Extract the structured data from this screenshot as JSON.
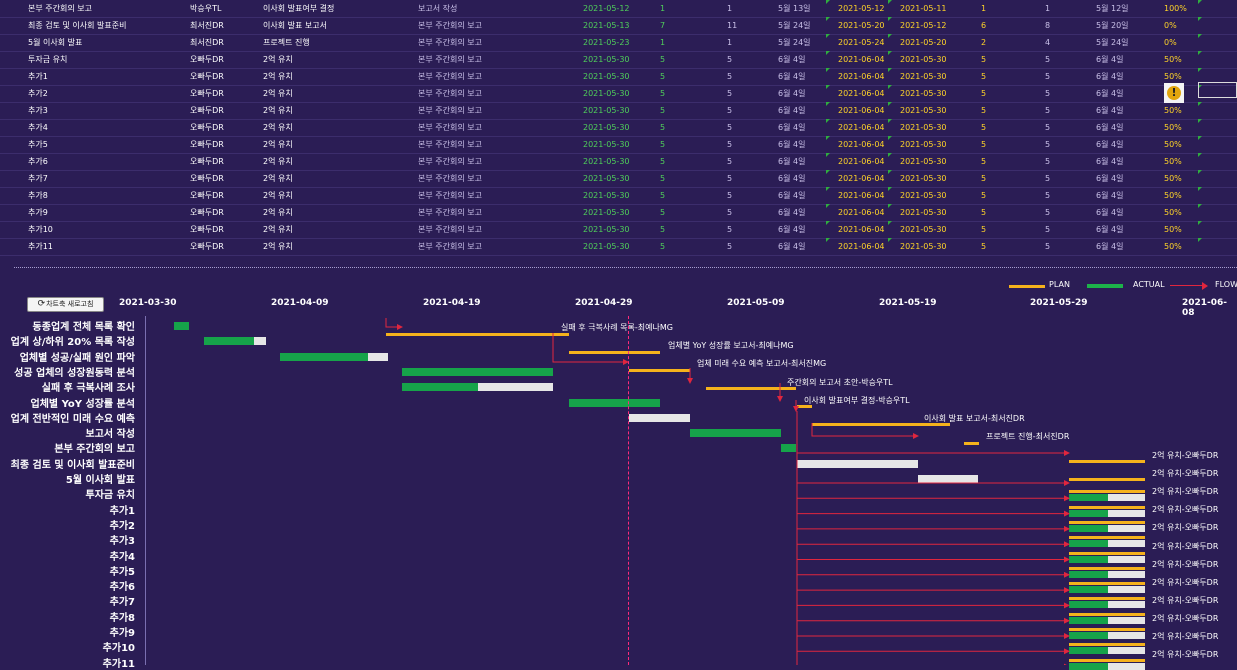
{
  "table": {
    "rows": [
      {
        "task": "본부 주간회의 보고",
        "owner": "박승우TL",
        "next": "이사회 발표여부 결정",
        "prev": "보고서 작성",
        "d1": "2021-05-12",
        "n1": "1",
        "n2": "1",
        "due": "5월 13일",
        "d2": "2021-05-12",
        "d3": "2021-05-11",
        "n3": "1",
        "n4": "1",
        "due2": "5월 12일",
        "pct": "100%"
      },
      {
        "task": "최종 검토 및 이사회 발표준비",
        "owner": "최서진DR",
        "next": "이사회 발표 보고서",
        "prev": "본부 주간회의 보고",
        "d1": "2021-05-13",
        "n1": "7",
        "n2": "11",
        "due": "5월 24일",
        "d2": "2021-05-20",
        "d3": "2021-05-12",
        "n3": "6",
        "n4": "8",
        "due2": "5월 20일",
        "pct": "0%"
      },
      {
        "task": "5월 이사회 발표",
        "owner": "최서진DR",
        "next": "프로젝트 진행",
        "prev": "본부 주간회의 보고",
        "d1": "2021-05-23",
        "n1": "1",
        "n2": "1",
        "due": "5월 24일",
        "d2": "2021-05-24",
        "d3": "2021-05-20",
        "n3": "2",
        "n4": "4",
        "due2": "5월 24일",
        "pct": "0%"
      },
      {
        "task": "투자금 유치",
        "owner": "오빠두DR",
        "next": "2억 유치",
        "prev": "본부 주간회의 보고",
        "d1": "2021-05-30",
        "n1": "5",
        "n2": "5",
        "due": "6월 4일",
        "d2": "2021-06-04",
        "d3": "2021-05-30",
        "n3": "5",
        "n4": "5",
        "due2": "6월 4일",
        "pct": "50%"
      },
      {
        "task": "추가1",
        "owner": "오빠두DR",
        "next": "2억 유치",
        "prev": "본부 주간회의 보고",
        "d1": "2021-05-30",
        "n1": "5",
        "n2": "5",
        "due": "6월 4일",
        "d2": "2021-06-04",
        "d3": "2021-05-30",
        "n3": "5",
        "n4": "5",
        "due2": "6월 4일",
        "pct": "50%"
      },
      {
        "task": "추가2",
        "owner": "오빠두DR",
        "next": "2억 유치",
        "prev": "본부 주간회의 보고",
        "d1": "2021-05-30",
        "n1": "5",
        "n2": "5",
        "due": "6월 4일",
        "d2": "2021-06-04",
        "d3": "2021-05-30",
        "n3": "5",
        "n4": "5",
        "due2": "6월 4일",
        "pct": ""
      },
      {
        "task": "추가3",
        "owner": "오빠두DR",
        "next": "2억 유치",
        "prev": "본부 주간회의 보고",
        "d1": "2021-05-30",
        "n1": "5",
        "n2": "5",
        "due": "6월 4일",
        "d2": "2021-06-04",
        "d3": "2021-05-30",
        "n3": "5",
        "n4": "5",
        "due2": "6월 4일",
        "pct": "50%"
      },
      {
        "task": "추가4",
        "owner": "오빠두DR",
        "next": "2억 유치",
        "prev": "본부 주간회의 보고",
        "d1": "2021-05-30",
        "n1": "5",
        "n2": "5",
        "due": "6월 4일",
        "d2": "2021-06-04",
        "d3": "2021-05-30",
        "n3": "5",
        "n4": "5",
        "due2": "6월 4일",
        "pct": "50%"
      },
      {
        "task": "추가5",
        "owner": "오빠두DR",
        "next": "2억 유치",
        "prev": "본부 주간회의 보고",
        "d1": "2021-05-30",
        "n1": "5",
        "n2": "5",
        "due": "6월 4일",
        "d2": "2021-06-04",
        "d3": "2021-05-30",
        "n3": "5",
        "n4": "5",
        "due2": "6월 4일",
        "pct": "50%"
      },
      {
        "task": "추가6",
        "owner": "오빠두DR",
        "next": "2억 유치",
        "prev": "본부 주간회의 보고",
        "d1": "2021-05-30",
        "n1": "5",
        "n2": "5",
        "due": "6월 4일",
        "d2": "2021-06-04",
        "d3": "2021-05-30",
        "n3": "5",
        "n4": "5",
        "due2": "6월 4일",
        "pct": "50%"
      },
      {
        "task": "추가7",
        "owner": "오빠두DR",
        "next": "2억 유치",
        "prev": "본부 주간회의 보고",
        "d1": "2021-05-30",
        "n1": "5",
        "n2": "5",
        "due": "6월 4일",
        "d2": "2021-06-04",
        "d3": "2021-05-30",
        "n3": "5",
        "n4": "5",
        "due2": "6월 4일",
        "pct": "50%"
      },
      {
        "task": "추가8",
        "owner": "오빠두DR",
        "next": "2억 유치",
        "prev": "본부 주간회의 보고",
        "d1": "2021-05-30",
        "n1": "5",
        "n2": "5",
        "due": "6월 4일",
        "d2": "2021-06-04",
        "d3": "2021-05-30",
        "n3": "5",
        "n4": "5",
        "due2": "6월 4일",
        "pct": "50%"
      },
      {
        "task": "추가9",
        "owner": "오빠두DR",
        "next": "2억 유치",
        "prev": "본부 주간회의 보고",
        "d1": "2021-05-30",
        "n1": "5",
        "n2": "5",
        "due": "6월 4일",
        "d2": "2021-06-04",
        "d3": "2021-05-30",
        "n3": "5",
        "n4": "5",
        "due2": "6월 4일",
        "pct": "50%"
      },
      {
        "task": "추가10",
        "owner": "오빠두DR",
        "next": "2억 유치",
        "prev": "본부 주간회의 보고",
        "d1": "2021-05-30",
        "n1": "5",
        "n2": "5",
        "due": "6월 4일",
        "d2": "2021-06-04",
        "d3": "2021-05-30",
        "n3": "5",
        "n4": "5",
        "due2": "6월 4일",
        "pct": "50%"
      },
      {
        "task": "추가11",
        "owner": "오빠두DR",
        "next": "2억 유치",
        "prev": "본부 주간회의 보고",
        "d1": "2021-05-30",
        "n1": "5",
        "n2": "5",
        "due": "6월 4일",
        "d2": "2021-06-04",
        "d3": "2021-05-30",
        "n3": "5",
        "n4": "5",
        "due2": "6월 4일",
        "pct": "50%"
      }
    ],
    "warning_icon": "warning-icon"
  },
  "legend": {
    "plan": "PLAN",
    "actual": "ACTUAL",
    "flow": "FLOW"
  },
  "colors": {
    "background": "#2b1d55",
    "plan": "#f5b21c",
    "actual": "#16a34a",
    "remaining": "#e6e6e6",
    "flow": "#e0263e",
    "today": "#ff2a7a"
  },
  "toolbar": {
    "refresh_label": "차트축 새로고침",
    "refresh_icon": "refresh-icon"
  },
  "chart_data": {
    "type": "gantt",
    "timeline_dates": [
      "2021-03-30",
      "2021-04-09",
      "2021-04-19",
      "2021-04-29",
      "2021-05-09",
      "2021-05-19",
      "2021-05-29",
      "2021-06-08"
    ],
    "task_labels": [
      "동종업계 전체 목록 확인",
      "업계 상/하위 20% 목록 작성",
      "업체별 성공/실패 원인 파악",
      "성공 업체의 성장원동력 분석",
      "실패 후 극복사례 조사",
      "업체별 YoY 성장률 분석",
      "업계 전반적인 미래 수요 예측",
      "보고서 작성",
      "본부 주간회의 보고",
      "최종 검토 및 이사회 발표준비",
      "5월 이사회 발표",
      "투자금 유치",
      "추가1",
      "추가2",
      "추가3",
      "추가4",
      "추가5",
      "추가6",
      "추가7",
      "추가8",
      "추가9",
      "추가10",
      "추가11"
    ],
    "annotations": [
      "실패 후 극복사례 목록-최예나MG",
      "업체별 YoY 성장률 보고서-최예나MG",
      "업체 미래 수요 예측 보고서-최서진MG",
      "주간회의 보고서 초안-박승우TL",
      "이사회 발표여부 결정-박승우TL",
      "이사회 발표 보고서-최서진DR",
      "프로젝트 진행-최서진DR",
      "2억 유치-오빠두DR",
      "2억 유치-오빠두DR",
      "2억 유치-오빠두DR",
      "2억 유치-오빠두DR",
      "2억 유치-오빠두DR",
      "2억 유치-오빠두DR",
      "2억 유치-오빠두DR",
      "2억 유치-오빠두DR",
      "2억 유치-오빠두DR",
      "2억 유치-오빠두DR",
      "2억 유치-오빠두DR",
      "2억 유치-오빠두DR"
    ]
  }
}
